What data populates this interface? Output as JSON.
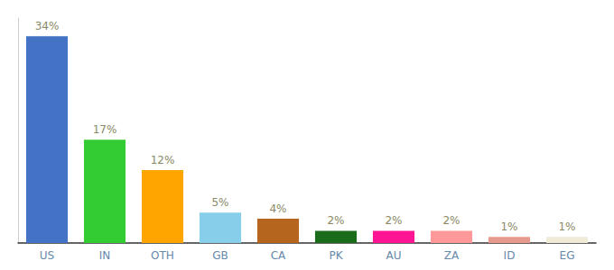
{
  "chart_data": {
    "type": "bar",
    "categories": [
      "US",
      "IN",
      "OTH",
      "GB",
      "CA",
      "PK",
      "AU",
      "ZA",
      "ID",
      "EG"
    ],
    "values": [
      34,
      17,
      12,
      5,
      4,
      2,
      2,
      2,
      1,
      1
    ],
    "value_labels": [
      "34%",
      "17%",
      "12%",
      "5%",
      "4%",
      "2%",
      "2%",
      "2%",
      "1%",
      "1%"
    ],
    "colors": [
      "#4472c4",
      "#33cc33",
      "#ffa500",
      "#87ceeb",
      "#b5651d",
      "#1a6b1a",
      "#ff1493",
      "#ff9999",
      "#e8998d",
      "#f0ead8"
    ],
    "ylim": [
      0,
      37
    ],
    "grid": false,
    "data_labels": true,
    "tick_labels": "x"
  }
}
